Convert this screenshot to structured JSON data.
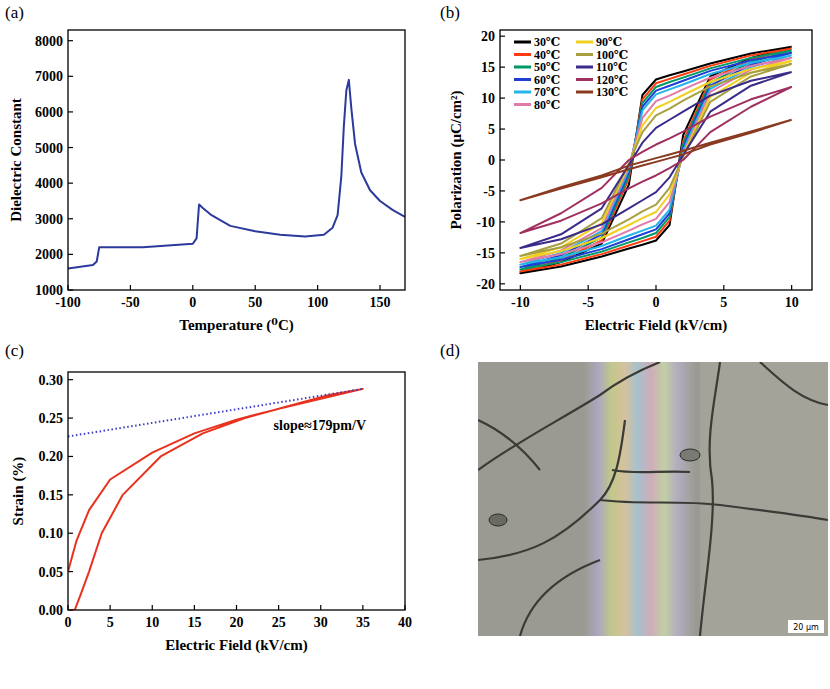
{
  "chart_data": [
    {
      "panel_label": "(a)",
      "type": "line",
      "x_label": "Temperature (⁰C)",
      "y_label": "Dielectric Constant",
      "x": [
        -100,
        -90,
        -80,
        -77,
        -75,
        -60,
        -40,
        -20,
        0,
        3,
        5,
        8,
        15,
        30,
        50,
        70,
        90,
        105,
        112,
        116,
        119,
        121,
        123,
        125,
        127,
        130,
        135,
        142,
        150,
        160,
        170
      ],
      "series": [
        {
          "color": "#2b3a9c",
          "values": [
            1600,
            1650,
            1700,
            1800,
            2200,
            2200,
            2200,
            2250,
            2300,
            2450,
            3400,
            3300,
            3100,
            2800,
            2650,
            2550,
            2500,
            2550,
            2750,
            3100,
            4200,
            5600,
            6600,
            6900,
            6100,
            5100,
            4300,
            3800,
            3500,
            3250,
            3050
          ]
        }
      ],
      "xlim": [
        -100,
        170
      ],
      "xticks": [
        -100,
        -50,
        0,
        50,
        100,
        150
      ],
      "ylim": [
        1000,
        8300
      ],
      "yticks": [
        1000,
        2000,
        3000,
        4000,
        5000,
        6000,
        7000,
        8000
      ]
    },
    {
      "panel_label": "(b)",
      "type": "line",
      "x_label": "Electric Field (kV/cm)",
      "y_label": "Polarization (μC/cm²)",
      "legend": "upper left",
      "x": [
        10,
        7,
        4,
        2,
        1,
        0,
        -1,
        -2,
        -4,
        -7,
        -10,
        -7,
        -4,
        -2,
        -1,
        0,
        1,
        2,
        4,
        7,
        10
      ],
      "series": [
        {
          "name": "30℃",
          "color": "#000000",
          "values": [
            18.3,
            17.2,
            15.6,
            14.3,
            13.7,
            13.0,
            10.5,
            -4,
            -13.5,
            -16.5,
            -18.3,
            -17.2,
            -15.6,
            -14.3,
            -13.7,
            -13.0,
            -10.5,
            4,
            13.5,
            16.5,
            18.3
          ]
        },
        {
          "name": "40℃",
          "color": "#ff3b10",
          "values": [
            18.0,
            16.9,
            15.2,
            13.8,
            13.1,
            12.4,
            9.8,
            -3,
            -13,
            -16.2,
            -18.0,
            -16.9,
            -15.2,
            -13.8,
            -13.1,
            -12.4,
            -9.8,
            3,
            13,
            16.2,
            18.0
          ]
        },
        {
          "name": "50℃",
          "color": "#009966",
          "values": [
            17.7,
            16.5,
            14.8,
            13.3,
            12.6,
            11.8,
            9.2,
            -2.5,
            -12.5,
            -15.8,
            -17.7,
            -16.5,
            -14.8,
            -13.3,
            -12.6,
            -11.8,
            -9.2,
            2.5,
            12.5,
            15.8,
            17.7
          ]
        },
        {
          "name": "60℃",
          "color": "#1f3fd8",
          "values": [
            17.3,
            16.1,
            14.4,
            12.8,
            12.0,
            11.2,
            8.6,
            -2,
            -12,
            -15.4,
            -17.3,
            -16.1,
            -14.4,
            -12.8,
            -12.0,
            -11.2,
            -8.6,
            2,
            12,
            15.4,
            17.3
          ]
        },
        {
          "name": "70℃",
          "color": "#22b5e8",
          "values": [
            16.9,
            15.7,
            13.9,
            12.2,
            11.4,
            10.6,
            8.0,
            -1.5,
            -11.5,
            -15,
            -16.9,
            -15.7,
            -13.9,
            -12.2,
            -11.4,
            -10.6,
            -8.0,
            1.5,
            11.5,
            15,
            16.9
          ]
        },
        {
          "name": "80℃",
          "color": "#e07aa8",
          "values": [
            16.5,
            15.2,
            13.3,
            11.4,
            10.4,
            9.5,
            6.8,
            -1,
            -11,
            -14.6,
            -16.5,
            -15.2,
            -13.3,
            -11.4,
            -10.4,
            -9.5,
            -6.8,
            1,
            11,
            14.6,
            16.5
          ]
        },
        {
          "name": "90℃",
          "color": "#f0d020",
          "values": [
            16.0,
            14.7,
            12.6,
            10.5,
            9.4,
            8.4,
            5.6,
            -0.8,
            -10.2,
            -14.1,
            -16.0,
            -14.7,
            -12.6,
            -10.5,
            -9.4,
            -8.4,
            -5.6,
            0.8,
            10.2,
            14.1,
            16.0
          ]
        },
        {
          "name": "100℃",
          "color": "#a8a040",
          "values": [
            15.5,
            14.1,
            11.9,
            9.6,
            8.3,
            7.2,
            4.5,
            -0.5,
            -9.4,
            -13.5,
            -15.5,
            -14.1,
            -11.9,
            -9.6,
            -8.3,
            -7.2,
            -4.5,
            0.5,
            9.4,
            13.5,
            15.5
          ]
        },
        {
          "name": "110℃",
          "color": "#3a2a8a",
          "values": [
            14.2,
            12.8,
            10.4,
            7.8,
            6.5,
            5.2,
            2.8,
            -0.8,
            -7.8,
            -12.0,
            -14.2,
            -12.8,
            -10.4,
            -7.8,
            -6.5,
            -5.2,
            -2.8,
            0.8,
            7.8,
            12.0,
            14.2
          ]
        },
        {
          "name": "120℃",
          "color": "#a03060",
          "values": [
            11.8,
            9.8,
            7.0,
            4.6,
            3.5,
            2.5,
            1.3,
            0,
            -4.5,
            -8.6,
            -11.8,
            -9.8,
            -7.0,
            -4.6,
            -3.5,
            -2.5,
            -1.3,
            0,
            4.5,
            8.6,
            11.8
          ]
        },
        {
          "name": "130℃",
          "color": "#8a3a20",
          "values": [
            6.5,
            4.6,
            2.8,
            1.5,
            0.9,
            0.3,
            -0.3,
            -0.9,
            -2.5,
            -4.4,
            -6.5,
            -4.6,
            -2.8,
            -1.5,
            -0.9,
            -0.3,
            0.3,
            0.9,
            2.5,
            4.4,
            6.5
          ]
        }
      ],
      "xlim": [
        -11.5,
        11.5
      ],
      "xticks": [
        -10,
        -5,
        0,
        5,
        10
      ],
      "ylim": [
        -21,
        21
      ],
      "yticks": [
        -20,
        -15,
        -10,
        -5,
        0,
        5,
        10,
        15,
        20
      ]
    },
    {
      "panel_label": "(c)",
      "type": "line",
      "x_label": "Electric Field (kV/cm)",
      "y_label": "Strain (%)",
      "annotation": "slope≈179pm/V",
      "series": [
        {
          "color": "#e8321e",
          "line_style": "solid",
          "x": [
            0,
            0.8,
            1.5,
            2.5,
            4,
            6.5,
            11,
            16,
            21,
            26,
            31,
            35,
            30,
            25,
            20,
            15,
            10,
            5,
            2.5,
            1,
            0
          ],
          "values": [
            0,
            0,
            0.02,
            0.05,
            0.1,
            0.15,
            0.2,
            0.23,
            0.25,
            0.265,
            0.28,
            0.288,
            0.275,
            0.262,
            0.248,
            0.23,
            0.205,
            0.17,
            0.13,
            0.09,
            0.05
          ]
        },
        {
          "color": "#3c3cc8",
          "line_style": "dotted",
          "x": [
            0,
            35
          ],
          "values": [
            0.226,
            0.288
          ]
        }
      ],
      "xlim": [
        0,
        40
      ],
      "xticks": [
        0,
        5,
        10,
        15,
        20,
        25,
        30,
        35,
        40
      ],
      "ylim": [
        0,
        0.31
      ],
      "yticks": [
        {
          "value": 0,
          "label": "0.00"
        },
        {
          "value": 0.05,
          "label": "0.05"
        },
        {
          "value": 0.1,
          "label": "0.10"
        },
        {
          "value": 0.15,
          "label": "0.15"
        },
        {
          "value": 0.2,
          "label": "0.20"
        },
        {
          "value": 0.25,
          "label": "0.25"
        },
        {
          "value": 0.3,
          "label": "0.30"
        }
      ]
    }
  ],
  "image_panel": {
    "panel_label": "(d)",
    "scale_bar": "20 μm"
  }
}
